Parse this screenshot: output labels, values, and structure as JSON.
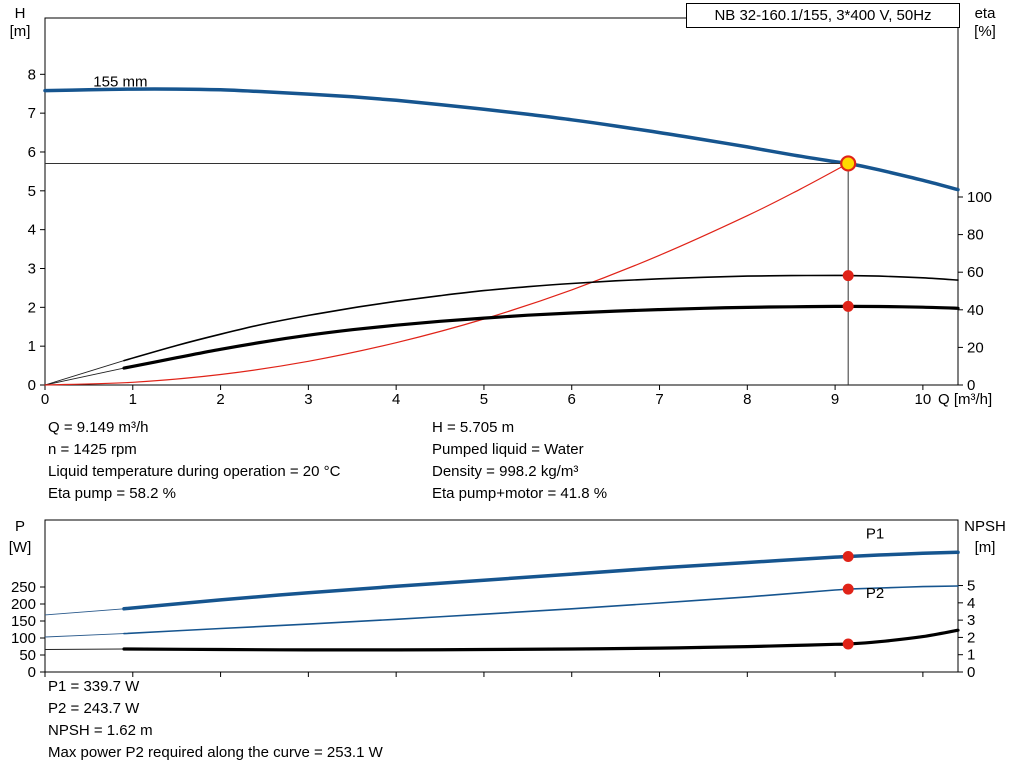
{
  "colors": {
    "curve_blue": "#16558f",
    "red": "#e02318",
    "black": "#000000",
    "duty_fill": "#ffd900",
    "crosshair": "#333333"
  },
  "annotations_top": {
    "left": [
      "Q = 9.149 m³/h",
      "n = 1425 rpm",
      "Liquid temperature during operation = 20 °C",
      "Eta pump = 58.2 %"
    ],
    "right": [
      "H = 5.705 m",
      "Pumped liquid = Water",
      "Density = 998.2 kg/m³",
      "Eta pump+motor = 41.8 %"
    ]
  },
  "annotations_bottom": [
    "P1 = 339.7 W",
    "P2 = 243.7 W",
    "NPSH = 1.62 m",
    "Max power P2 required along the curve = 253.1 W"
  ],
  "chart_data": [
    {
      "type": "line",
      "title": "NB 32-160.1/155, 3*400 V, 50Hz",
      "x_axis": {
        "label": "Q [m³/h]",
        "min": 0,
        "max": 10.4,
        "ticks": [
          0,
          1,
          2,
          3,
          4,
          5,
          6,
          7,
          8,
          9,
          10
        ],
        "show_tick_labels": true
      },
      "y_left": {
        "label": "H",
        "unit": "[m]",
        "min": 0,
        "max": 9.45,
        "ticks": [
          0,
          1,
          2,
          3,
          4,
          5,
          6,
          7,
          8
        ]
      },
      "y_right": {
        "label": "eta",
        "unit": "[%]",
        "min": 0,
        "max": 195.2,
        "ticks": [
          0,
          20,
          40,
          60,
          80,
          100
        ]
      },
      "duty_point": {
        "q": 9.149,
        "h": 5.705
      },
      "crosshair": true,
      "curve_label": {
        "text": "155 mm",
        "q": 0.55,
        "h": 7.68
      },
      "series": [
        {
          "name": "qh-155mm",
          "axis": "left",
          "color": "#16558f",
          "width": 3.5,
          "x": [
            0,
            0.5,
            1,
            1.5,
            2,
            2.5,
            3,
            3.5,
            4,
            4.5,
            5,
            5.5,
            6,
            6.5,
            7,
            7.5,
            8,
            8.5,
            9,
            9.149,
            9.5,
            10,
            10.4
          ],
          "y": [
            7.58,
            7.6,
            7.62,
            7.62,
            7.6,
            7.55,
            7.49,
            7.42,
            7.33,
            7.22,
            7.1,
            6.97,
            6.83,
            6.67,
            6.5,
            6.32,
            6.13,
            5.93,
            5.75,
            5.705,
            5.54,
            5.27,
            5.03
          ]
        },
        {
          "name": "system-curve",
          "axis": "left",
          "color": "#e02318",
          "width": 1.2,
          "x": [
            0,
            1,
            2,
            3,
            4,
            5,
            6,
            7,
            8,
            8.6,
            9.149
          ],
          "y": [
            0,
            0.07,
            0.27,
            0.61,
            1.09,
            1.7,
            2.45,
            3.34,
            4.36,
            5.04,
            5.705
          ]
        },
        {
          "name": "eta-pump",
          "axis": "right",
          "color": "#000000",
          "width": 1.6,
          "x": [
            0.9,
            1.5,
            2,
            2.5,
            3,
            3.5,
            4,
            4.5,
            5,
            5.5,
            6,
            6.5,
            7,
            7.5,
            8,
            8.5,
            9,
            9.149,
            9.5,
            10,
            10.4
          ],
          "y": [
            13,
            21,
            27,
            32.5,
            37,
            41,
            44.5,
            47.5,
            50.2,
            52.3,
            54,
            55.4,
            56.5,
            57.3,
            57.9,
            58.2,
            58.3,
            58.2,
            57.9,
            57,
            55.8
          ]
        },
        {
          "name": "eta-pump-motor",
          "axis": "right",
          "color": "#000000",
          "width": 3.2,
          "x": [
            0.9,
            1.5,
            2,
            2.5,
            3,
            3.5,
            4,
            4.5,
            5,
            5.5,
            6,
            6.5,
            7,
            7.5,
            8,
            8.5,
            9,
            9.149,
            9.5,
            10,
            10.4
          ],
          "y": [
            9,
            14.5,
            19,
            23,
            26.5,
            29.4,
            31.8,
            33.9,
            35.6,
            37.1,
            38.3,
            39.3,
            40.1,
            40.8,
            41.3,
            41.6,
            41.8,
            41.8,
            41.75,
            41.4,
            40.8
          ]
        }
      ],
      "lead_lines": [
        {
          "axis": "right",
          "x": [
            0,
            0.9
          ],
          "y": [
            0,
            13
          ],
          "width": 0.9,
          "color": "#222222"
        },
        {
          "axis": "right",
          "x": [
            0,
            0.9
          ],
          "y": [
            0,
            9
          ],
          "width": 0.9,
          "color": "#222222"
        }
      ],
      "markers": [
        {
          "type": "duty",
          "axis": "left",
          "q": 9.149,
          "v": 5.705
        },
        {
          "type": "dot",
          "axis": "right",
          "q": 9.149,
          "v": 58.2
        },
        {
          "type": "dot",
          "axis": "right",
          "q": 9.149,
          "v": 41.8
        }
      ]
    },
    {
      "type": "line",
      "x_axis": {
        "label": "",
        "min": 0,
        "max": 10.4,
        "ticks": [
          0,
          1,
          2,
          3,
          4,
          5,
          6,
          7,
          8,
          9,
          10
        ],
        "show_tick_labels": false
      },
      "y_left": {
        "label": "P",
        "unit": "[W]",
        "min": 0,
        "max": 447,
        "ticks": [
          0,
          50,
          100,
          150,
          200,
          250
        ]
      },
      "y_right": {
        "label": "NPSH",
        "unit": "[m]",
        "min": 0,
        "max": 8.79,
        "ticks": [
          0,
          1,
          2,
          3,
          4,
          5
        ]
      },
      "series": [
        {
          "name": "p1",
          "axis": "left",
          "color": "#16558f",
          "width": 3.5,
          "x": [
            0.9,
            2,
            3,
            4,
            5,
            6,
            7,
            8,
            9,
            9.149,
            9.5,
            10,
            10.4
          ],
          "y": [
            186,
            212,
            233,
            252,
            270,
            288,
            306,
            322,
            338,
            339.7,
            344,
            349,
            352
          ]
        },
        {
          "name": "p2",
          "axis": "left",
          "color": "#16558f",
          "width": 1.6,
          "x": [
            0.9,
            2,
            3,
            4,
            5,
            6,
            7,
            8,
            9,
            9.149,
            9.5,
            10,
            10.4
          ],
          "y": [
            113,
            128,
            141,
            155,
            170,
            186,
            203,
            221,
            241,
            243.7,
            247,
            251,
            253
          ]
        },
        {
          "name": "npsh",
          "axis": "right",
          "color": "#000000",
          "width": 3.2,
          "x": [
            0.9,
            2,
            3,
            4,
            5,
            6,
            7,
            7.5,
            8,
            8.5,
            9,
            9.149,
            9.5,
            10,
            10.4
          ],
          "y": [
            1.33,
            1.3,
            1.28,
            1.28,
            1.3,
            1.33,
            1.38,
            1.42,
            1.47,
            1.53,
            1.6,
            1.62,
            1.75,
            2.05,
            2.42
          ]
        }
      ],
      "lead_lines": [
        {
          "axis": "left",
          "x": [
            0,
            0.9
          ],
          "y": [
            168,
            186
          ],
          "width": 0.9,
          "color": "#2a5a8c"
        },
        {
          "axis": "left",
          "x": [
            0,
            0.9
          ],
          "y": [
            103,
            113
          ],
          "width": 0.9,
          "color": "#2a5a8c"
        },
        {
          "axis": "right",
          "x": [
            0,
            0.9
          ],
          "y": [
            1.3,
            1.33
          ],
          "width": 0.9,
          "color": "#222222"
        }
      ],
      "markers": [
        {
          "type": "dot",
          "axis": "left",
          "q": 9.149,
          "v": 339.7
        },
        {
          "type": "dot",
          "axis": "left",
          "q": 9.149,
          "v": 243.7
        },
        {
          "type": "dot",
          "axis": "right",
          "q": 9.149,
          "v": 1.62
        }
      ],
      "series_labels": [
        {
          "text": "P1",
          "q": 9.35,
          "v": 392,
          "axis": "left",
          "color": "#16558f"
        },
        {
          "text": "P2",
          "q": 9.35,
          "v": 218,
          "axis": "left",
          "color": "#16558f"
        }
      ]
    }
  ]
}
